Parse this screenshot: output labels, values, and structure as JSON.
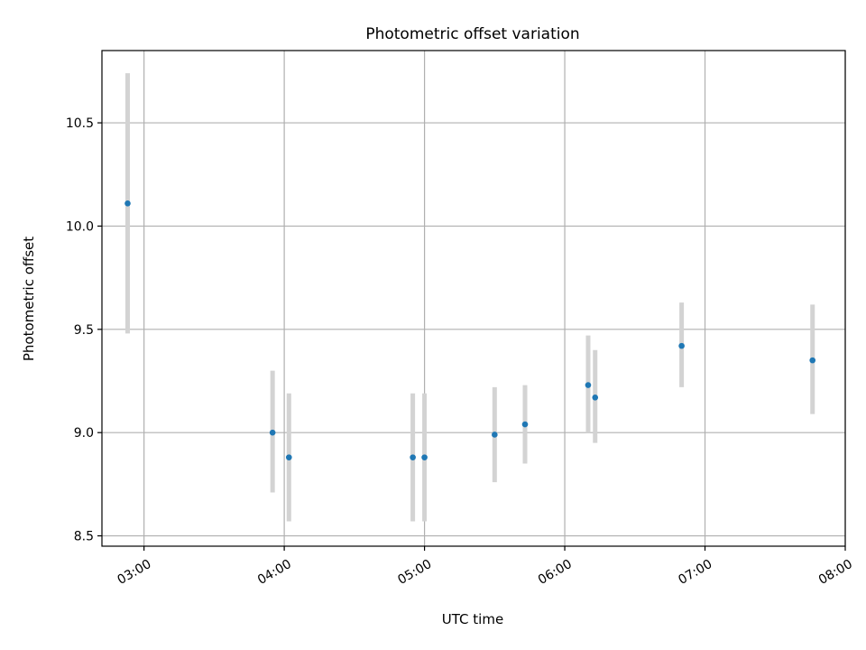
{
  "chart_data": {
    "type": "scatter",
    "title": "Photometric offset variation",
    "xlabel": "UTC time",
    "ylabel": "Photometric offset",
    "x_axis": "time",
    "xlim": [
      "02:42",
      "08:00"
    ],
    "ylim": [
      8.45,
      10.85
    ],
    "xticks": [
      "03:00",
      "04:00",
      "05:00",
      "06:00",
      "07:00",
      "08:00"
    ],
    "yticks": [
      8.5,
      9.0,
      9.5,
      10.0,
      10.5
    ],
    "grid": true,
    "legend": false,
    "colors": {
      "point": "#1f77b4",
      "errorbar": "#d3d3d3"
    },
    "series": [
      {
        "points": [
          {
            "x": "02:53",
            "y": 10.11,
            "ylow": 9.48,
            "yhigh": 10.74
          },
          {
            "x": "03:55",
            "y": 9.0,
            "ylow": 8.71,
            "yhigh": 9.3
          },
          {
            "x": "04:02",
            "y": 8.88,
            "ylow": 8.57,
            "yhigh": 9.19
          },
          {
            "x": "04:55",
            "y": 8.88,
            "ylow": 8.57,
            "yhigh": 9.19
          },
          {
            "x": "05:00",
            "y": 8.88,
            "ylow": 8.57,
            "yhigh": 9.19
          },
          {
            "x": "05:30",
            "y": 8.99,
            "ylow": 8.76,
            "yhigh": 9.22
          },
          {
            "x": "05:43",
            "y": 9.04,
            "ylow": 8.85,
            "yhigh": 9.23
          },
          {
            "x": "06:10",
            "y": 9.23,
            "ylow": 9.0,
            "yhigh": 9.47
          },
          {
            "x": "06:13",
            "y": 9.17,
            "ylow": 8.95,
            "yhigh": 9.4
          },
          {
            "x": "06:50",
            "y": 9.42,
            "ylow": 9.22,
            "yhigh": 9.63
          },
          {
            "x": "07:46",
            "y": 9.35,
            "ylow": 9.09,
            "yhigh": 9.62
          }
        ]
      }
    ]
  }
}
